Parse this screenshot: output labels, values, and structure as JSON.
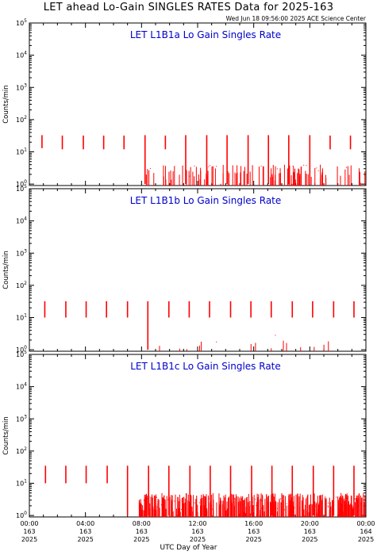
{
  "header": {
    "title": "LET ahead Lo-Gain SINGLES RATES Data for 2025-163",
    "timestamp": "Wed Jun 18 09:56:00 2025 ACE Science Center"
  },
  "xlabel": "UTC Day of Year",
  "colors": {
    "data": "#ff0000",
    "panel_title": "#0000cc",
    "axis": "#000000"
  },
  "chart_data": [
    {
      "type": "line",
      "title": "LET L1B1a Lo Gain Singles Rate",
      "ylabel": "Counts/min",
      "yscale": "log",
      "ylim": [
        0.9,
        100000
      ],
      "y_ticks": [
        1,
        10,
        100,
        1000,
        10000,
        100000
      ],
      "y_tick_labels": [
        [
          "10",
          "0"
        ],
        [
          "10",
          "1"
        ],
        [
          "10",
          "2"
        ],
        [
          "10",
          "3"
        ],
        [
          "10",
          "4"
        ],
        [
          "10",
          "5"
        ]
      ],
      "xlim": [
        0,
        24
      ],
      "spikes": [
        {
          "x": 0.9,
          "low": 13,
          "high": 33
        },
        {
          "x": 2.35,
          "low": 12,
          "high": 32
        },
        {
          "x": 3.85,
          "low": 12,
          "high": 32
        },
        {
          "x": 5.3,
          "low": 12,
          "high": 32
        },
        {
          "x": 6.75,
          "low": 12,
          "high": 32
        },
        {
          "x": 8.25,
          "low": 1,
          "high": 33
        },
        {
          "x": 9.7,
          "low": 12,
          "high": 32
        },
        {
          "x": 11.15,
          "low": 1,
          "high": 33
        },
        {
          "x": 12.65,
          "low": 1,
          "high": 33
        },
        {
          "x": 14.1,
          "low": 1,
          "high": 33
        },
        {
          "x": 15.6,
          "low": 1,
          "high": 33
        },
        {
          "x": 17.05,
          "low": 1,
          "high": 33
        },
        {
          "x": 18.5,
          "low": 1,
          "high": 33
        },
        {
          "x": 20.0,
          "low": 1,
          "high": 33
        },
        {
          "x": 21.45,
          "low": 12,
          "high": 32
        },
        {
          "x": 22.9,
          "low": 12,
          "high": 32
        }
      ],
      "noise": {
        "start": 8.2,
        "end": 24,
        "count": 110,
        "max": 4
      }
    },
    {
      "type": "line",
      "title": "LET L1B1b Lo Gain Singles Rate",
      "ylabel": "Counts/min",
      "yscale": "log",
      "ylim": [
        0.9,
        100000
      ],
      "y_ticks": [
        1,
        10,
        100,
        1000,
        10000,
        100000
      ],
      "y_tick_labels": [
        [
          "10",
          "0"
        ],
        [
          "10",
          "1"
        ],
        [
          "10",
          "2"
        ],
        [
          "10",
          "3"
        ],
        [
          "10",
          "4"
        ],
        [
          "10",
          "5"
        ]
      ],
      "xlim": [
        0,
        24
      ],
      "spikes": [
        {
          "x": 1.1,
          "low": 10,
          "high": 32
        },
        {
          "x": 2.6,
          "low": 10,
          "high": 32
        },
        {
          "x": 4.05,
          "low": 10,
          "high": 32
        },
        {
          "x": 5.5,
          "low": 10,
          "high": 32
        },
        {
          "x": 7.0,
          "low": 10,
          "high": 32
        },
        {
          "x": 8.45,
          "low": 1,
          "high": 32
        },
        {
          "x": 9.95,
          "low": 10,
          "high": 32
        },
        {
          "x": 11.4,
          "low": 10,
          "high": 32
        },
        {
          "x": 12.85,
          "low": 10,
          "high": 32
        },
        {
          "x": 14.35,
          "low": 10,
          "high": 32
        },
        {
          "x": 15.8,
          "low": 10,
          "high": 32
        },
        {
          "x": 17.25,
          "low": 10,
          "high": 32
        },
        {
          "x": 18.75,
          "low": 10,
          "high": 32
        },
        {
          "x": 20.2,
          "low": 10,
          "high": 32
        },
        {
          "x": 21.7,
          "low": 10,
          "high": 32
        },
        {
          "x": 23.15,
          "low": 10,
          "high": 32
        }
      ],
      "noise": {
        "start": 8.3,
        "end": 24,
        "count": 14,
        "max": 2
      }
    },
    {
      "type": "line",
      "title": "LET L1B1c Lo Gain Singles Rate",
      "ylabel": "Counts/min",
      "yscale": "log",
      "ylim": [
        0.9,
        100000
      ],
      "y_ticks": [
        1,
        10,
        100,
        1000,
        10000,
        100000
      ],
      "y_tick_labels": [
        [
          "10",
          "0"
        ],
        [
          "10",
          "1"
        ],
        [
          "10",
          "2"
        ],
        [
          "10",
          "3"
        ],
        [
          "10",
          "4"
        ],
        [
          "10",
          "5"
        ]
      ],
      "xlim": [
        0,
        24
      ],
      "spikes": [
        {
          "x": 1.15,
          "low": 10,
          "high": 35
        },
        {
          "x": 2.6,
          "low": 10,
          "high": 35
        },
        {
          "x": 4.05,
          "low": 10,
          "high": 35
        },
        {
          "x": 5.55,
          "low": 10,
          "high": 35
        },
        {
          "x": 7.0,
          "low": 1,
          "high": 35
        },
        {
          "x": 8.5,
          "low": 1,
          "high": 35
        },
        {
          "x": 9.95,
          "low": 1,
          "high": 35
        },
        {
          "x": 11.45,
          "low": 1,
          "high": 35
        },
        {
          "x": 12.9,
          "low": 1,
          "high": 35
        },
        {
          "x": 14.35,
          "low": 1,
          "high": 35
        },
        {
          "x": 15.85,
          "low": 1,
          "high": 35
        },
        {
          "x": 17.3,
          "low": 1,
          "high": 35
        },
        {
          "x": 18.75,
          "low": 1,
          "high": 35
        },
        {
          "x": 20.25,
          "low": 1,
          "high": 35
        },
        {
          "x": 21.7,
          "low": 1,
          "high": 35
        },
        {
          "x": 23.15,
          "low": 1,
          "high": 35
        }
      ],
      "noise": {
        "start": 7.8,
        "end": 24,
        "count": 420,
        "max": 5
      }
    }
  ],
  "x_ticks": [
    {
      "hours": 0,
      "time": "00:00",
      "doy": "163",
      "year": "2025"
    },
    {
      "hours": 4,
      "time": "04:00",
      "doy": "163",
      "year": "2025"
    },
    {
      "hours": 8,
      "time": "08:00",
      "doy": "163",
      "year": "2025"
    },
    {
      "hours": 12,
      "time": "12:00",
      "doy": "163",
      "year": "2025"
    },
    {
      "hours": 16,
      "time": "16:00",
      "doy": "163",
      "year": "2025"
    },
    {
      "hours": 20,
      "time": "20:00",
      "doy": "163",
      "year": "2025"
    },
    {
      "hours": 24,
      "time": "00:00",
      "doy": "164",
      "year": "2025"
    }
  ]
}
